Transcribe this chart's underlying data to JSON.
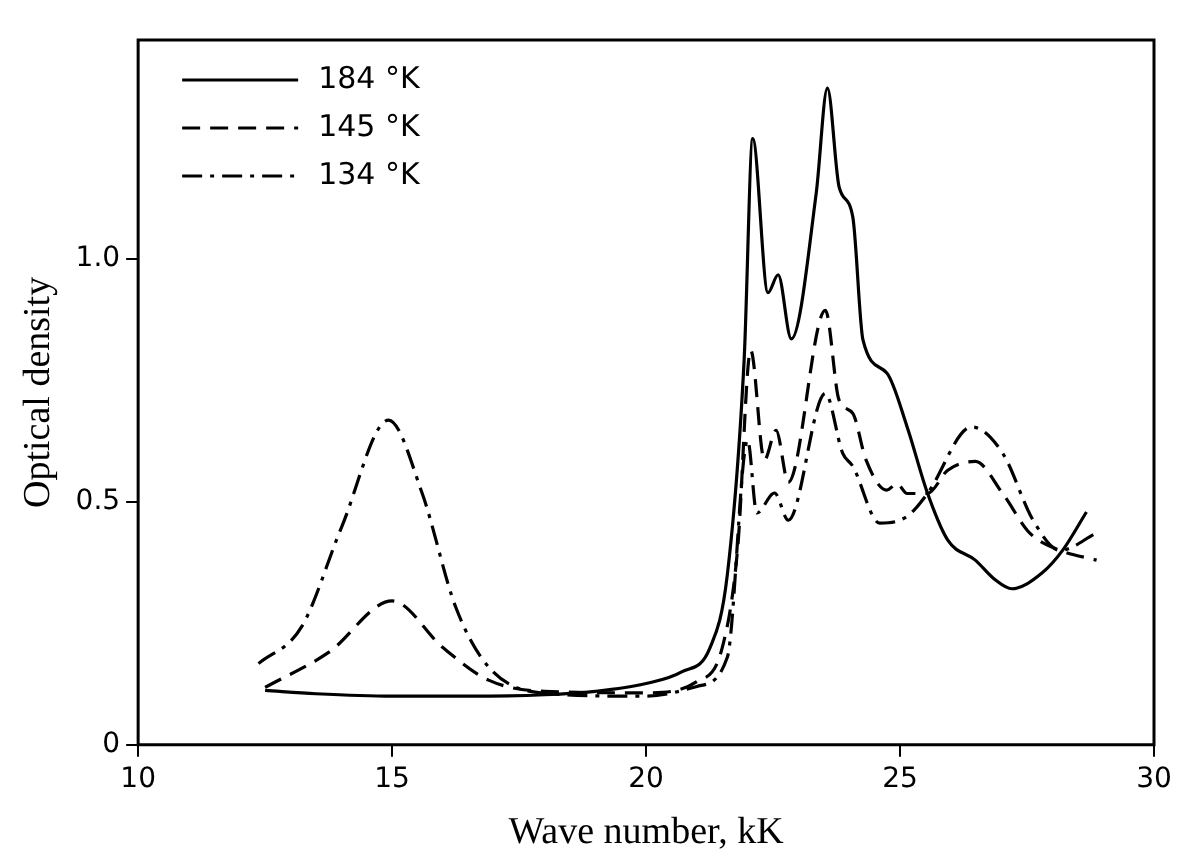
{
  "chart_data": {
    "type": "line",
    "xlabel": "Wave number, kK",
    "ylabel": "Optical density",
    "xlim": [
      10,
      30
    ],
    "xticks": [
      10,
      15,
      20,
      25,
      30
    ],
    "ylim": [
      0,
      1.45
    ],
    "yticks": [
      0,
      {
        "value": 0.5,
        "label": "0.5"
      },
      {
        "value": 1,
        "label": "1.0"
      }
    ],
    "grid": false,
    "legend": "top left",
    "marker": "none",
    "series": [
      {
        "name": "184 °K",
        "color": "#000000",
        "line_style": "solid",
        "x": [
          12.5,
          13.5,
          15,
          16.5,
          18,
          19,
          20,
          20.7,
          21.26,
          21.6,
          21.93,
          22.1,
          22.4,
          22.6,
          22.86,
          23.35,
          23.57,
          23.8,
          24.07,
          24.27,
          24.74,
          25.14,
          25.54,
          25.94,
          26.48,
          26.88,
          27.2,
          27.8,
          28.2,
          28.67
        ],
        "values": [
          0.112,
          0.105,
          0.1,
          0.1,
          0.103,
          0.11,
          0.126,
          0.15,
          0.2,
          0.35,
          0.79,
          1.247,
          0.93,
          0.967,
          0.835,
          1.135,
          1.351,
          1.148,
          1.086,
          0.833,
          0.765,
          0.654,
          0.518,
          0.421,
          0.38,
          0.339,
          0.321,
          0.354,
          0.4,
          0.479
        ]
      },
      {
        "name": "145 °K",
        "color": "#000000",
        "line_style": "dashed",
        "x": [
          12.5,
          13.75,
          15,
          16,
          16.9,
          18,
          20,
          21,
          21.5,
          21.8,
          22.06,
          22.33,
          22.56,
          22.8,
          23.53,
          23.8,
          24.07,
          24.33,
          24.74,
          24.94,
          25.14,
          25.54,
          25.94,
          26.48,
          27.02,
          27.55,
          28.15,
          28.87
        ],
        "values": [
          0.118,
          0.19,
          0.296,
          0.2,
          0.133,
          0.11,
          0.107,
          0.13,
          0.2,
          0.4,
          0.812,
          0.586,
          0.647,
          0.54,
          0.894,
          0.709,
          0.682,
          0.586,
          0.524,
          0.537,
          0.517,
          0.517,
          0.565,
          0.583,
          0.517,
          0.436,
          0.4,
          0.38
        ]
      },
      {
        "name": "134 °K",
        "color": "#000000",
        "line_style": "dashdot",
        "x": [
          12.37,
          13.22,
          14.01,
          14.93,
          15.59,
          16.25,
          16.9,
          18,
          20,
          21,
          21.6,
          22,
          22.18,
          22.53,
          22.8,
          23.53,
          23.87,
          24.07,
          24.6,
          25.14,
          25.54,
          26.41,
          27.02,
          27.62,
          28.15,
          28.87
        ],
        "values": [
          0.167,
          0.243,
          0.449,
          0.668,
          0.518,
          0.284,
          0.16,
          0.106,
          0.1,
          0.12,
          0.18,
          0.627,
          0.477,
          0.518,
          0.462,
          0.723,
          0.6,
          0.573,
          0.456,
          0.47,
          0.517,
          0.654,
          0.6,
          0.462,
          0.4,
          0.436
        ]
      }
    ]
  }
}
